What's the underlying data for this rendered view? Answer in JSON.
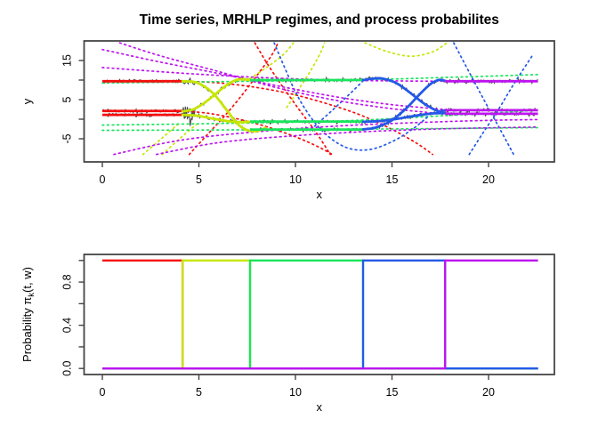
{
  "title": "Time series, MRHLP regimes, and process probabilites",
  "colors": {
    "regime1": "#F50E0E",
    "regime2": "#C6E600",
    "regime3": "#18E55C",
    "regime4": "#2459E8",
    "regime5": "#BE14EF",
    "data": "#4D4D4D",
    "axis": "#454545",
    "text": "#000000"
  },
  "chart_data": [
    {
      "type": "line",
      "title": "Time series, MRHLP regimes, and process probabilites",
      "xlabel": "x",
      "ylabel": "y",
      "xlim": [
        -0.945,
        23.41
      ],
      "ylim": [
        -10.91,
        20.0
      ],
      "xticks": {
        "values": [
          0,
          5,
          10,
          15,
          20
        ],
        "labels": [
          "0",
          "5",
          "10",
          "15",
          "20"
        ]
      },
      "yticks": {
        "values": [
          -5,
          0,
          5,
          10,
          15
        ],
        "labels": [
          "-5",
          "",
          "5",
          "",
          "15"
        ]
      },
      "grid": false,
      "legend": "none",
      "n_dims": 3,
      "x_range": [
        0,
        22.56
      ],
      "noise_sd": 0.22,
      "noise_bursts": [
        {
          "x": [
            4.15,
            4.75
          ],
          "sd": 1.15,
          "dims": [
            1,
            2
          ]
        },
        {
          "x": [
            4.15,
            4.6
          ],
          "sd": 0.4,
          "dims": [
            0
          ]
        },
        {
          "x": [
            15.0,
            17.3
          ],
          "sd": 0.12,
          "dims": [
            1
          ]
        }
      ],
      "regimes": [
        {
          "name": "regime-1",
          "color_key": "regime1",
          "x": [
            0,
            4.15
          ],
          "kind": "flat",
          "means": [
            9.7,
            2.1,
            1.1
          ]
        },
        {
          "name": "regime-2",
          "color_key": "regime2",
          "x": [
            4.15,
            7.65
          ],
          "kind": "curves",
          "curves": [
            [
              [
                4.15,
                9.7
              ],
              [
                4.9,
                9.35
              ],
              [
                5.7,
                6.8
              ],
              [
                6.4,
                2.6
              ],
              [
                7.0,
                -1.2
              ],
              [
                7.5,
                -2.8
              ],
              [
                8.0,
                -3.05
              ],
              [
                8.45,
                -2.2
              ]
            ],
            [
              [
                4.15,
                2.0
              ],
              [
                4.7,
                2.5
              ],
              [
                5.3,
                4.2
              ],
              [
                5.9,
                6.6
              ],
              [
                6.5,
                8.9
              ],
              [
                7.05,
                10.15
              ],
              [
                7.65,
                10.05
              ]
            ],
            [
              [
                4.15,
                1.1
              ],
              [
                4.9,
                0.9
              ],
              [
                5.7,
                0.15
              ],
              [
                6.5,
                -0.5
              ],
              [
                7.1,
                -0.75
              ],
              [
                7.65,
                -0.65
              ]
            ]
          ]
        },
        {
          "name": "regime-3",
          "color_key": "regime3",
          "x": [
            7.65,
            13.5
          ],
          "kind": "flat",
          "means": [
            -2.65,
            10.0,
            -0.6
          ]
        },
        {
          "name": "regime-4",
          "color_key": "regime4",
          "x": [
            13.5,
            17.75
          ],
          "kind": "curves",
          "curves": [
            [
              [
                13.5,
                -2.6
              ],
              [
                14.1,
                -2.2
              ],
              [
                14.9,
                -0.6
              ],
              [
                15.7,
                2.6
              ],
              [
                16.4,
                6.2
              ],
              [
                17.0,
                9.0
              ],
              [
                17.45,
                10.05
              ],
              [
                17.75,
                9.8
              ]
            ],
            [
              [
                13.5,
                10.0
              ],
              [
                14.0,
                10.35
              ],
              [
                14.5,
                10.4
              ],
              [
                15.2,
                9.3
              ],
              [
                15.9,
                6.9
              ],
              [
                16.6,
                4.2
              ],
              [
                17.1,
                2.7
              ],
              [
                17.45,
                2.0
              ],
              [
                17.75,
                2.3
              ]
            ],
            [
              [
                13.5,
                -0.65
              ],
              [
                14.5,
                -0.4
              ],
              [
                15.5,
                0.3
              ],
              [
                16.5,
                1.1
              ],
              [
                17.2,
                1.5
              ],
              [
                17.75,
                1.55
              ]
            ]
          ]
        },
        {
          "name": "regime-5",
          "color_key": "regime5",
          "x": [
            17.75,
            22.56
          ],
          "kind": "flat",
          "means": [
            9.7,
            2.3,
            1.4
          ]
        }
      ],
      "extrapolations": [
        {
          "color_key": "regime1",
          "points": [
            [
              4.15,
              9.7
            ],
            [
              6,
              9.3
            ],
            [
              8,
              8.1
            ],
            [
              10,
              6.2
            ],
            [
              12,
              3.4
            ],
            [
              13.5,
              0.8
            ],
            [
              15,
              -2.6
            ],
            [
              16.3,
              -6.2
            ],
            [
              17.1,
              -9
            ]
          ]
        },
        {
          "color_key": "regime1",
          "points": [
            [
              4.5,
              -9
            ],
            [
              5.5,
              -3.6
            ],
            [
              6.4,
              1.2
            ],
            [
              7.3,
              6.6
            ],
            [
              8.1,
              11.8
            ],
            [
              8.75,
              16.2
            ],
            [
              9.1,
              19.5
            ]
          ]
        },
        {
          "color_key": "regime1",
          "points": [
            [
              7.9,
              19.5
            ],
            [
              8.5,
              14.5
            ],
            [
              9.3,
              8.6
            ],
            [
              10.2,
              2.4
            ],
            [
              11.1,
              -3.6
            ],
            [
              11.8,
              -9
            ]
          ]
        },
        {
          "color_key": "regime1",
          "points": [
            [
              4.15,
              2.1
            ],
            [
              5.5,
              1.5
            ],
            [
              7,
              0.1
            ],
            [
              8.5,
              -1.9
            ],
            [
              10,
              -4.5
            ],
            [
              11.2,
              -7.1
            ],
            [
              11.9,
              -9
            ]
          ]
        },
        {
          "color_key": "regime2",
          "points": [
            [
              2.1,
              -9
            ],
            [
              3.1,
              -4.8
            ],
            [
              4.0,
              -0.9
            ]
          ]
        },
        {
          "color_key": "regime2",
          "points": [
            [
              3.1,
              -9
            ],
            [
              4.0,
              -5.0
            ],
            [
              4.85,
              -1.4
            ]
          ]
        },
        {
          "color_key": "regime2",
          "points": [
            [
              7.65,
              10.4
            ],
            [
              8.5,
              13.2
            ],
            [
              9.35,
              16.4
            ],
            [
              9.9,
              19.5
            ]
          ]
        },
        {
          "color_key": "regime2",
          "points": [
            [
              9.55,
              3.0
            ],
            [
              10.15,
              7.5
            ],
            [
              10.8,
              12.5
            ],
            [
              11.3,
              17.0
            ],
            [
              11.5,
              19.5
            ]
          ]
        },
        {
          "color_key": "regime2",
          "points": [
            [
              13.6,
              19.5
            ],
            [
              14.8,
              17.2
            ],
            [
              16.0,
              16.1
            ],
            [
              17.1,
              17.2
            ],
            [
              17.85,
              19.5
            ]
          ]
        },
        {
          "color_key": "regime3",
          "points": [
            [
              0,
              9.25
            ],
            [
              6,
              9.6
            ],
            [
              13.5,
              10.1
            ],
            [
              18,
              10.7
            ],
            [
              22.56,
              11.4
            ]
          ]
        },
        {
          "color_key": "regime3",
          "points": [
            [
              0,
              -1.5
            ],
            [
              6,
              -1.1
            ],
            [
              12,
              -0.5
            ],
            [
              17,
              0.7
            ],
            [
              22.56,
              2.3
            ]
          ]
        },
        {
          "color_key": "regime3",
          "points": [
            [
              0,
              -2.85
            ],
            [
              8,
              -2.7
            ],
            [
              16,
              -2.45
            ],
            [
              22.56,
              -2.15
            ]
          ]
        },
        {
          "color_key": "regime4",
          "points": [
            [
              8.9,
              19.5
            ],
            [
              9.5,
              12.5
            ],
            [
              10.1,
              6.0
            ],
            [
              10.9,
              -0.2
            ],
            [
              11.8,
              -4.8
            ],
            [
              12.8,
              -7.5
            ],
            [
              13.9,
              -7.7
            ],
            [
              15.1,
              -5.5
            ],
            [
              16.1,
              -2.4
            ],
            [
              16.9,
              0.8
            ]
          ]
        },
        {
          "color_key": "regime4",
          "points": [
            [
              10.8,
              -2.6
            ],
            [
              11.8,
              1.8
            ],
            [
              12.8,
              6.4
            ],
            [
              13.5,
              9.8
            ]
          ]
        },
        {
          "color_key": "regime4",
          "points": [
            [
              18.2,
              19.5
            ],
            [
              19.0,
              12.0
            ],
            [
              19.8,
              4.6
            ],
            [
              20.6,
              -2.6
            ],
            [
              21.3,
              -9
            ]
          ]
        },
        {
          "color_key": "regime4",
          "points": [
            [
              19.0,
              -9
            ],
            [
              19.7,
              -3.6
            ],
            [
              20.5,
              2.4
            ],
            [
              21.3,
              8.9
            ],
            [
              22.3,
              16.5
            ]
          ]
        },
        {
          "color_key": "regime5",
          "points": [
            [
              0,
              13.2
            ],
            [
              4,
              11.8
            ],
            [
              8,
              10.7
            ],
            [
              12,
              10.0
            ],
            [
              15,
              9.8
            ],
            [
              17.75,
              9.7
            ],
            [
              22.56,
              9.7
            ]
          ]
        },
        {
          "color_key": "regime5",
          "points": [
            [
              0,
              17.8
            ],
            [
              3,
              14.6
            ],
            [
              6,
              11.7
            ],
            [
              9,
              8.6
            ],
            [
              12,
              5.8
            ],
            [
              14.5,
              4.0
            ],
            [
              16.5,
              3.0
            ],
            [
              17.75,
              2.5
            ],
            [
              19,
              2.35
            ],
            [
              22.56,
              2.3
            ]
          ]
        },
        {
          "color_key": "regime5",
          "points": [
            [
              0.9,
              19.5
            ],
            [
              3,
              16.2
            ],
            [
              6,
              12.2
            ],
            [
              9,
              8.1
            ],
            [
              12,
              4.9
            ],
            [
              14.5,
              3.0
            ],
            [
              16.5,
              1.9
            ],
            [
              17.75,
              1.55
            ],
            [
              22.56,
              1.5
            ]
          ]
        },
        {
          "color_key": "regime5",
          "points": [
            [
              0.6,
              -9
            ],
            [
              4,
              -5.4
            ],
            [
              8,
              -3.2
            ],
            [
              12,
              -1.8
            ],
            [
              16,
              -0.9
            ],
            [
              20,
              -0.3
            ],
            [
              22.56,
              -0.1
            ]
          ]
        },
        {
          "color_key": "regime5",
          "points": [
            [
              2.8,
              -9
            ],
            [
              6,
              -6.0
            ],
            [
              10,
              -4.2
            ],
            [
              14,
              -3.1
            ],
            [
              18,
              -2.4
            ],
            [
              22.56,
              -2.0
            ]
          ]
        }
      ]
    },
    {
      "type": "step",
      "xlabel": "x",
      "ylabel": "Probability π_k(t, w)",
      "xlim": [
        -0.945,
        23.41
      ],
      "ylim": [
        -0.056,
        1.056
      ],
      "xticks": {
        "values": [
          0,
          5,
          10,
          15,
          20
        ],
        "labels": [
          "0",
          "5",
          "10",
          "15",
          "20"
        ]
      },
      "yticks": {
        "values": [
          0,
          0.2,
          0.4,
          0.6,
          0.8,
          1.0
        ],
        "labels": [
          "0.0",
          "",
          "0.4",
          "",
          "0.8",
          ""
        ]
      },
      "grid": false,
      "x_range": [
        0,
        22.56
      ],
      "series": [
        {
          "name": "regime-1-probability",
          "color_key": "regime1",
          "interval": [
            0,
            4.15
          ],
          "high_value": 1,
          "low_value": 0
        },
        {
          "name": "regime-2-probability",
          "color_key": "regime2",
          "interval": [
            4.15,
            7.65
          ],
          "high_value": 1,
          "low_value": 0
        },
        {
          "name": "regime-3-probability",
          "color_key": "regime3",
          "interval": [
            7.65,
            13.5
          ],
          "high_value": 1,
          "low_value": 0
        },
        {
          "name": "regime-4-probability",
          "color_key": "regime4",
          "interval": [
            13.5,
            17.75
          ],
          "high_value": 1,
          "low_value": 0
        },
        {
          "name": "regime-5-probability",
          "color_key": "regime5",
          "interval": [
            17.75,
            22.56
          ],
          "high_value": 1,
          "low_value": 0
        }
      ]
    }
  ]
}
